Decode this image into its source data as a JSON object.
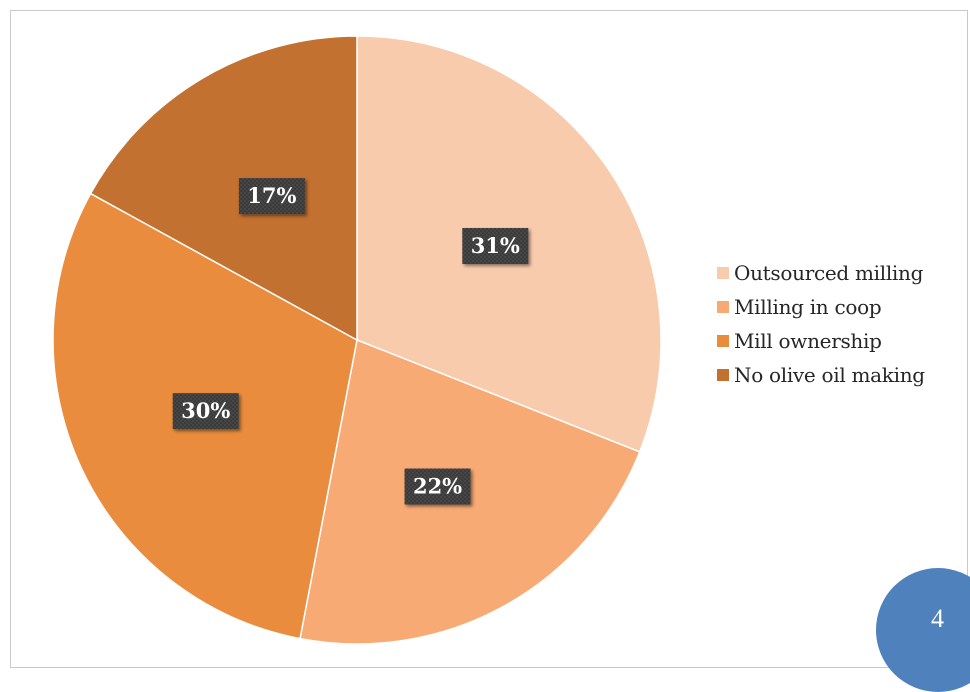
{
  "chart_data": {
    "type": "pie",
    "categories": [
      "Outsourced milling",
      "Milling in coop",
      "Mill ownership",
      "No olive oil making"
    ],
    "values": [
      31,
      22,
      30,
      17
    ],
    "labels": [
      "31%",
      "22%",
      "30%",
      "17%"
    ],
    "colors": [
      "#f8cbad",
      "#f7aa74",
      "#e98c3e",
      "#c27131"
    ],
    "title": "",
    "legend_position": "right"
  },
  "page": {
    "number": "4",
    "badge_color": "#4f81bd"
  }
}
